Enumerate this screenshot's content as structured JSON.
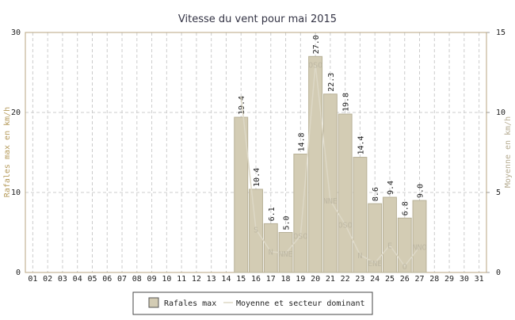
{
  "chart_data": {
    "type": "bar",
    "title": "Vitesse du vent pour mai 2015",
    "y_label": "Rafales max en km/h",
    "y2_label": "Moyenne en km/h",
    "categories": [
      "01",
      "02",
      "03",
      "04",
      "05",
      "06",
      "07",
      "08",
      "09",
      "10",
      "11",
      "12",
      "13",
      "14",
      "15",
      "16",
      "17",
      "18",
      "19",
      "20",
      "21",
      "22",
      "23",
      "24",
      "25",
      "26",
      "27",
      "28",
      "29",
      "30",
      "31"
    ],
    "ylim": [
      0,
      30
    ],
    "yticks": [
      0,
      10,
      20,
      30
    ],
    "y2lim": [
      0,
      15
    ],
    "y2ticks": [
      0,
      5,
      10,
      15
    ],
    "grid": true,
    "legend": "bottom",
    "series": [
      {
        "name": "Rafales max",
        "color": "#d3ccb4",
        "values": [
          null,
          null,
          null,
          null,
          null,
          null,
          null,
          null,
          null,
          null,
          null,
          null,
          null,
          null,
          19.4,
          10.4,
          6.1,
          5.0,
          14.8,
          27.0,
          22.3,
          19.8,
          14.4,
          8.6,
          9.4,
          6.8,
          9.0,
          null,
          null,
          null,
          null
        ],
        "value_labels": [
          null,
          null,
          null,
          null,
          null,
          null,
          null,
          null,
          null,
          null,
          null,
          null,
          null,
          null,
          "19.4",
          "10.4",
          "6.1",
          "5.0",
          "14.8",
          "27.0",
          "22.3",
          "19.8",
          "14.4",
          "8.6",
          "9.4",
          "6.8",
          "9.0",
          null,
          null,
          null,
          null
        ]
      },
      {
        "name": "Moyenne et secteur dominant",
        "color": "#ddd8c6",
        "axis": "y2",
        "values": [
          null,
          null,
          null,
          null,
          null,
          null,
          null,
          null,
          null,
          null,
          null,
          null,
          null,
          null,
          11,
          2.7,
          1.3,
          1.2,
          2.3,
          13,
          4.5,
          3,
          1.1,
          0.6,
          1.7,
          0.4,
          1.6,
          null,
          null,
          null,
          null
        ],
        "sectors": [
          null,
          null,
          null,
          null,
          null,
          null,
          null,
          null,
          null,
          null,
          null,
          null,
          null,
          null,
          null,
          "S",
          "N",
          "NNE",
          "OSO",
          "OSO",
          "NNE",
          "OSO",
          "N",
          "ENE",
          "E",
          "O",
          "NNO",
          null,
          null,
          null,
          null
        ]
      }
    ]
  }
}
